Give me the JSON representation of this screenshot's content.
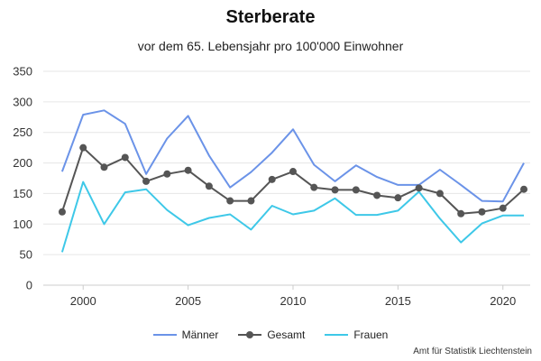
{
  "chart_data": {
    "type": "line",
    "title": "Sterberate",
    "subtitle": "vor dem 65. Lebensjahr pro 100'000 Einwohner",
    "x": [
      1999,
      2000,
      2001,
      2002,
      2003,
      2004,
      2005,
      2006,
      2007,
      2008,
      2009,
      2010,
      2011,
      2012,
      2013,
      2014,
      2015,
      2016,
      2017,
      2018,
      2019,
      2020,
      2021
    ],
    "x_ticks": [
      "2000",
      "2005",
      "2010",
      "2015",
      "2020"
    ],
    "y_ticks": [
      "0",
      "50",
      "100",
      "150",
      "200",
      "250",
      "300",
      "350"
    ],
    "ylim": [
      0,
      350
    ],
    "xlim": [
      1998.1,
      2021.3
    ],
    "grid": true,
    "legend_position": "bottom-center",
    "series": [
      {
        "name": "Männer",
        "color": "#6b93e8",
        "markers": false,
        "values": [
          186,
          279,
          286,
          264,
          182,
          240,
          277,
          212,
          160,
          185,
          217,
          255,
          197,
          170,
          196,
          177,
          164,
          164,
          189,
          164,
          138,
          137,
          200
        ]
      },
      {
        "name": "Gesamt",
        "color": "#555555",
        "markers": true,
        "values": [
          120,
          225,
          193,
          209,
          170,
          182,
          188,
          162,
          138,
          138,
          173,
          186,
          160,
          156,
          156,
          147,
          143,
          159,
          150,
          117,
          120,
          126,
          157
        ]
      },
      {
        "name": "Frauen",
        "color": "#3ec8e8",
        "markers": false,
        "values": [
          54,
          169,
          100,
          152,
          157,
          123,
          98,
          110,
          116,
          91,
          130,
          116,
          122,
          142,
          115,
          115,
          122,
          153,
          109,
          70,
          101,
          114,
          114
        ]
      }
    ]
  },
  "source": "Amt für Statistik Liechtenstein"
}
